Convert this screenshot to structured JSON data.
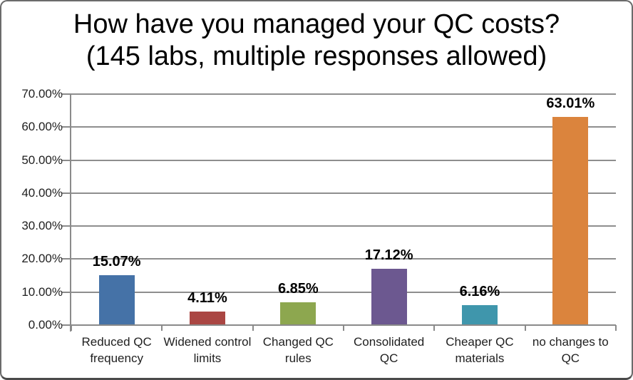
{
  "chart_data": {
    "type": "bar",
    "title_line1": "How have you managed your QC costs?",
    "title_line2": "(145 labs, multiple responses allowed)",
    "categories": [
      "Reduced QC frequency",
      "Widened control limits",
      "Changed QC rules",
      "Consolidated QC",
      "Cheaper QC materials",
      "no changes to QC"
    ],
    "values": [
      15.07,
      4.11,
      6.85,
      17.12,
      6.16,
      63.01
    ],
    "value_labels": [
      "15.07%",
      "4.11%",
      "6.85%",
      "17.12%",
      "6.16%",
      "63.01%"
    ],
    "bar_colors": [
      "#4572A7",
      "#AA4643",
      "#8DA74F",
      "#6C5890",
      "#3F96AC",
      "#DB843D"
    ],
    "y_axis": {
      "min": 0,
      "max": 70,
      "tick_step": 10,
      "tick_labels": [
        "0.00%",
        "10.00%",
        "20.00%",
        "30.00%",
        "40.00%",
        "50.00%",
        "60.00%",
        "70.00%"
      ]
    },
    "xlabel": "",
    "ylabel": "",
    "grid": true,
    "legend": false,
    "colors": {
      "axis": "#8a8a8a",
      "gridline": "#8e8e8e",
      "title_text": "#000000",
      "axis_text": "#1f1f1f",
      "value_text": "#000000",
      "background": "#ffffff"
    }
  }
}
